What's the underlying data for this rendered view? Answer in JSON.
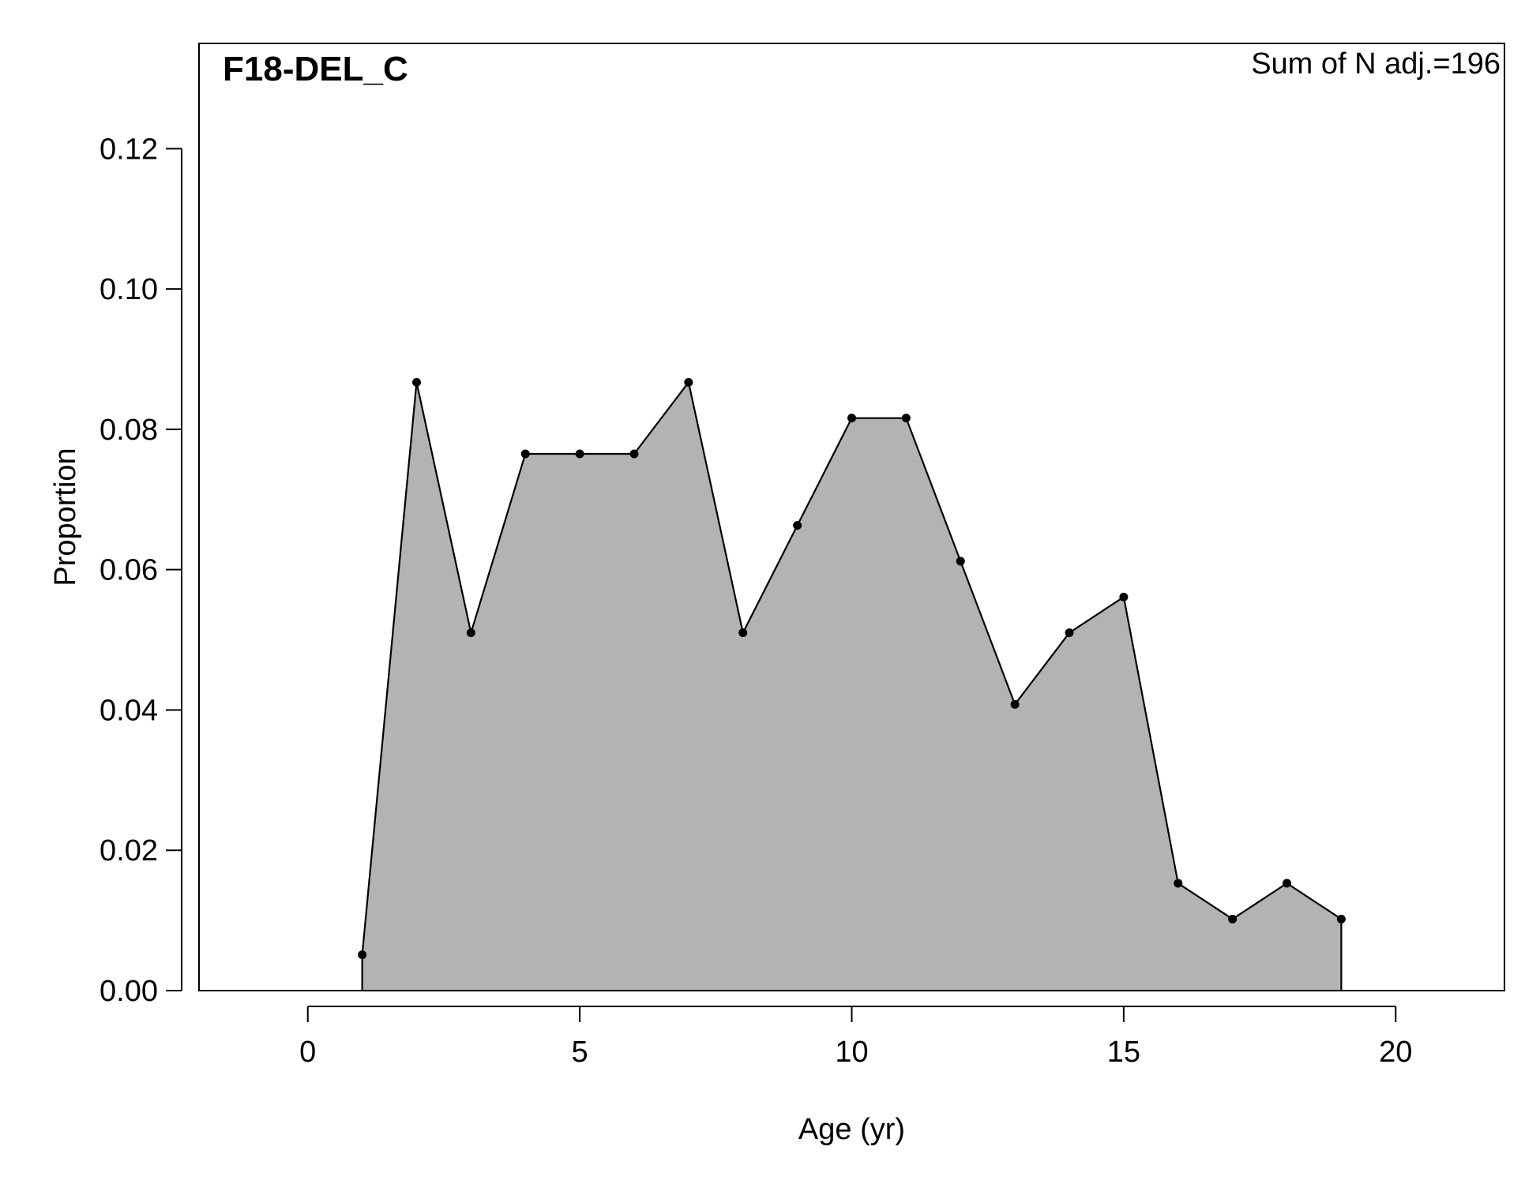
{
  "chart_data": {
    "type": "area",
    "title": "F18-DEL_C",
    "annotation": "Sum of N adj.=196",
    "xlabel": "Age (yr)",
    "ylabel": "Proportion",
    "xlim": [
      -2,
      22
    ],
    "ylim": [
      0,
      0.135
    ],
    "x_ticks": [
      0,
      5,
      10,
      15,
      20
    ],
    "y_ticks": [
      0.0,
      0.02,
      0.04,
      0.06,
      0.08,
      0.1,
      0.12
    ],
    "x_tick_labels": [
      "0",
      "5",
      "10",
      "15",
      "20"
    ],
    "y_tick_labels": [
      "0.00",
      "0.02",
      "0.04",
      "0.06",
      "0.08",
      "0.10",
      "0.12"
    ],
    "fill_color": "#b3b3b3",
    "line_color": "#000000",
    "grid": false,
    "x": [
      1,
      2,
      3,
      4,
      5,
      6,
      7,
      8,
      9,
      10,
      11,
      12,
      13,
      14,
      15,
      16,
      17,
      18,
      19
    ],
    "y": [
      0.0051,
      0.0867,
      0.051,
      0.0765,
      0.0765,
      0.0765,
      0.0867,
      0.051,
      0.0663,
      0.0816,
      0.0816,
      0.0612,
      0.0408,
      0.051,
      0.0561,
      0.0153,
      0.0102,
      0.0153,
      0.0102
    ]
  }
}
